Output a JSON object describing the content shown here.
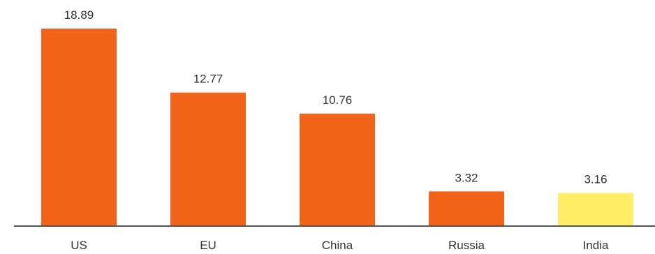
{
  "chart_data": {
    "type": "bar",
    "categories": [
      "US",
      "EU",
      "China",
      "Russia",
      "India"
    ],
    "values": [
      18.89,
      12.77,
      10.76,
      3.32,
      3.16
    ],
    "value_labels": [
      "18.89",
      "12.77",
      "10.76",
      "3.32",
      "3.16"
    ],
    "title": "",
    "xlabel": "",
    "ylabel": "",
    "ylim": [
      0,
      18.89
    ],
    "grid": false,
    "legend": "none",
    "colors": {
      "default_bar": "#F26419",
      "highlight_bar": "#FFEE66",
      "axis": "#555555",
      "text": "#333333"
    },
    "highlight_index": 4
  }
}
